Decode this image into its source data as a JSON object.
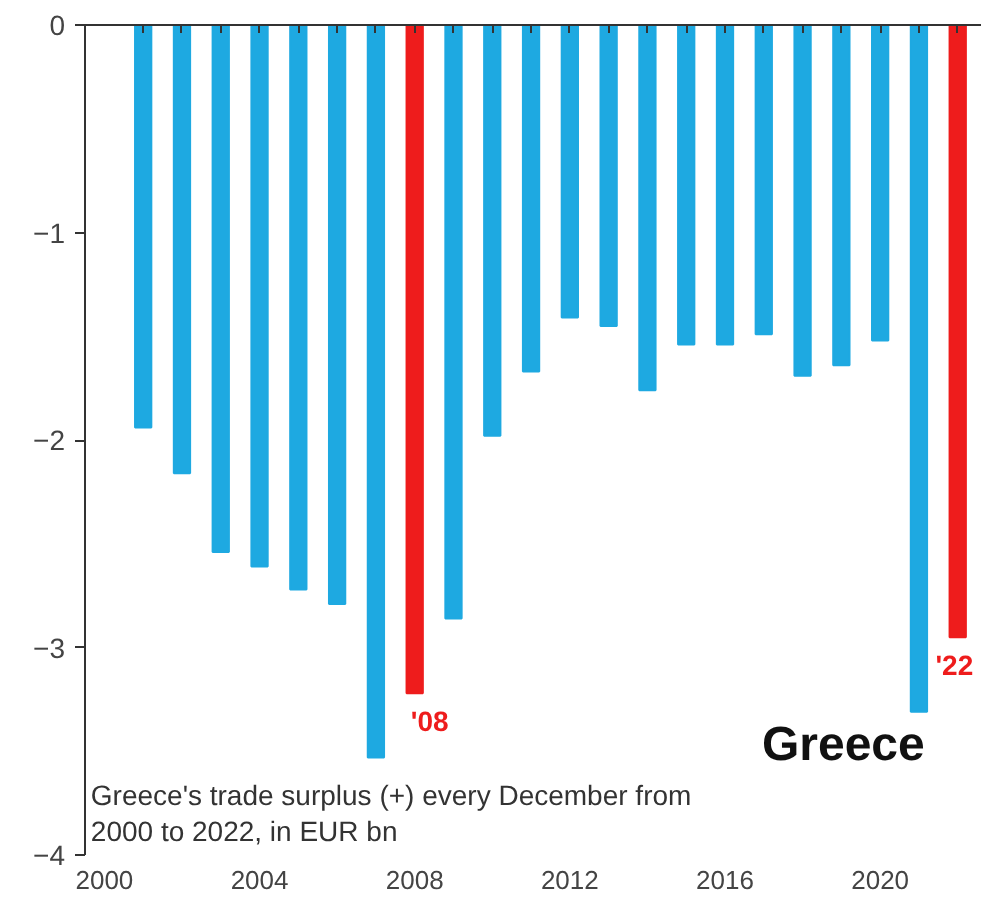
{
  "chart_data": {
    "type": "bar",
    "title": "Greece",
    "x": [
      2001,
      2002,
      2003,
      2004,
      2005,
      2006,
      2007,
      2008,
      2009,
      2010,
      2011,
      2012,
      2013,
      2014,
      2015,
      2016,
      2017,
      2018,
      2019,
      2020,
      2021,
      2022
    ],
    "values": [
      -1.94,
      -2.16,
      -2.54,
      -2.61,
      -2.72,
      -2.79,
      -3.53,
      -3.22,
      -2.86,
      -1.98,
      -1.67,
      -1.41,
      -1.45,
      -1.76,
      -1.54,
      -1.54,
      -1.49,
      -1.69,
      -1.64,
      -1.52,
      -3.31,
      -2.95
    ],
    "colors": [
      "#1ea9e1",
      "#1ea9e1",
      "#1ea9e1",
      "#1ea9e1",
      "#1ea9e1",
      "#1ea9e1",
      "#1ea9e1",
      "#ee1c1c",
      "#1ea9e1",
      "#1ea9e1",
      "#1ea9e1",
      "#1ea9e1",
      "#1ea9e1",
      "#1ea9e1",
      "#1ea9e1",
      "#1ea9e1",
      "#1ea9e1",
      "#1ea9e1",
      "#1ea9e1",
      "#1ea9e1",
      "#1ea9e1",
      "#ee1c1c"
    ],
    "xlim": [
      1999.5,
      2022.6
    ],
    "xticks": [
      2000,
      2004,
      2008,
      2012,
      2016,
      2020
    ],
    "ylim": [
      -4,
      0
    ],
    "yticks": [
      0,
      -1,
      -2,
      -3,
      -4
    ],
    "annotations": [
      {
        "text": "'08",
        "x": 2008,
        "y": -3.22
      },
      {
        "text": "'22",
        "x": 2022,
        "y": -2.95
      },
      "Greece's trade surplus (+) every December from 2000 to 2022, in EUR bn"
    ],
    "grid": false
  }
}
